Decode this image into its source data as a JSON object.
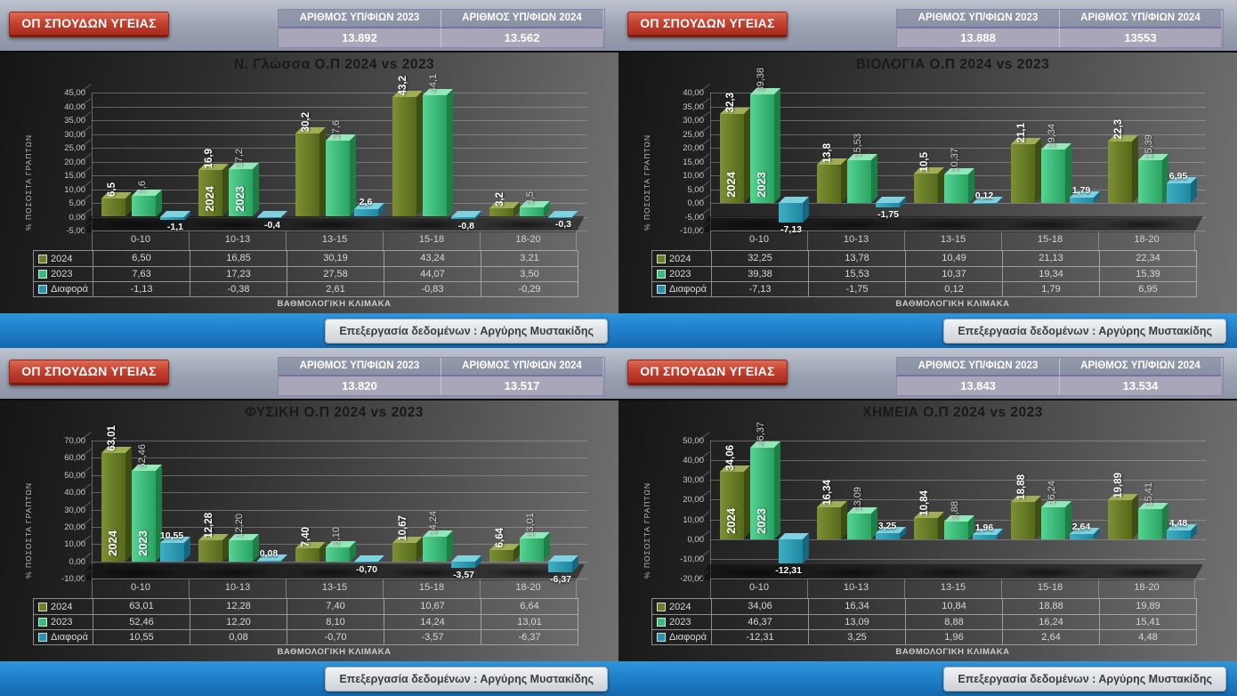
{
  "shared": {
    "badge_label": "ΟΠ ΣΠΟΥΔΩΝ ΥΓΕΙΑΣ",
    "candidates_header_2023": "ΑΡΙΘΜΟΣ ΥΠ/ΦΙΩΝ 2023",
    "candidates_header_2024": "ΑΡΙΘΜΟΣ ΥΠ/ΦΙΩΝ 2024",
    "y_axis_label": "% ΠΟΣΟΣΤΑ ΓΡΑΠΤΩΝ",
    "x_axis_label": "ΒΑΘΜΟΛΟΓΙΚΗ ΚΛΙΜΑΚΑ",
    "footer_credit": "Επεξεργασία δεδομένων : Αργύρης Μυστακίδης",
    "categories": [
      "0-10",
      "10-13",
      "13-15",
      "15-18",
      "18-20"
    ],
    "legend": [
      "2024",
      "2023",
      "Διαφορά"
    ],
    "colors": {
      "bar_2024": "#6c8026",
      "bar_2023": "#35bd79",
      "bar_diff": "#2a93ab",
      "badge_red": "#c44232",
      "footer_blue": "#1e7dc7",
      "header_gray": "#9aa2b2"
    }
  },
  "chart_data": [
    {
      "type": "bar",
      "title": "Ν. Γλώσσα Ο.Π 2024 vs 2023",
      "xlabel": "ΒΑΘΜΟΛΟΓΙΚΗ ΚΛΙΜΑΚΑ",
      "ylabel": "% ΠΟΣΟΣΤΑ ΓΡΑΠΤΩΝ",
      "candidates": {
        "2023": "13.892",
        "2024": "13.562"
      },
      "categories": [
        "0-10",
        "10-13",
        "13-15",
        "15-18",
        "18-20"
      ],
      "series": [
        {
          "name": "2024",
          "values": [
            6.5,
            16.85,
            30.19,
            43.24,
            3.21
          ]
        },
        {
          "name": "2023",
          "values": [
            7.63,
            17.23,
            27.58,
            44.07,
            3.5
          ]
        },
        {
          "name": "Διαφορά",
          "values": [
            -1.13,
            -0.38,
            2.61,
            -0.83,
            -0.29
          ]
        }
      ],
      "ylim": [
        -5,
        45
      ],
      "ytick_step": 5,
      "yticks": [
        "45,00",
        "40,00",
        "35,00",
        "30,00",
        "25,00",
        "20,00",
        "15,00",
        "10,00",
        "5,00",
        "0,00",
        "-5,00"
      ],
      "bar_labels": {
        "y2024": [
          "6,5",
          "16,9",
          "30,2",
          "43,2",
          "3,2"
        ],
        "y2023": [
          "7,6",
          "17,2",
          "27,6",
          "44,1",
          "3,5"
        ],
        "diff": [
          "-1,1",
          "-0,4",
          "2,6",
          "-0,8",
          "-0,3"
        ]
      },
      "table": {
        "y2024": [
          "6,50",
          "16,85",
          "30,19",
          "43,24",
          "3,21"
        ],
        "y2023": [
          "7,63",
          "17,23",
          "27,58",
          "44,07",
          "3,50"
        ],
        "diff": [
          "-1,13",
          "-0,38",
          "2,61",
          "-0,83",
          "-0,29"
        ]
      },
      "year_label_group": 1
    },
    {
      "type": "bar",
      "title": "ΒΙΟΛΟΓΙΑ Ο.Π 2024 vs 2023",
      "xlabel": "ΒΑΘΜΟΛΟΓΙΚΗ ΚΛΙΜΑΚΑ",
      "ylabel": "% ΠΟΣΟΣΤΑ ΓΡΑΠΤΩΝ",
      "candidates": {
        "2023": "13.888",
        "2024": "13553"
      },
      "categories": [
        "0-10",
        "10-13",
        "13-15",
        "15-18",
        "18-20"
      ],
      "series": [
        {
          "name": "2024",
          "values": [
            32.25,
            13.78,
            10.49,
            21.13,
            22.34
          ]
        },
        {
          "name": "2023",
          "values": [
            39.38,
            15.53,
            10.37,
            19.34,
            15.39
          ]
        },
        {
          "name": "Διαφορά",
          "values": [
            -7.13,
            -1.75,
            0.12,
            1.79,
            6.95
          ]
        }
      ],
      "ylim": [
        -10,
        40
      ],
      "ytick_step": 5,
      "yticks": [
        "40,00",
        "35,00",
        "30,00",
        "25,00",
        "20,00",
        "15,00",
        "10,00",
        "5,00",
        "0,00",
        "-5,00",
        "-10,00"
      ],
      "bar_labels": {
        "y2024": [
          "32,3",
          "13,8",
          "10,5",
          "21,1",
          "22,3"
        ],
        "y2023": [
          "39,38",
          "15,53",
          "10,37",
          "19,34",
          "15,39"
        ],
        "diff": [
          "-7,13",
          "-1,75",
          "0,12",
          "1,79",
          "6,95"
        ]
      },
      "table": {
        "y2024": [
          "32,25",
          "13,78",
          "10,49",
          "21,13",
          "22,34"
        ],
        "y2023": [
          "39,38",
          "15,53",
          "10,37",
          "19,34",
          "15,39"
        ],
        "diff": [
          "-7,13",
          "-1,75",
          "0,12",
          "1,79",
          "6,95"
        ]
      },
      "year_label_group": 0
    },
    {
      "type": "bar",
      "title": "ΦΥΣΙΚΗ Ο.Π 2024 vs 2023",
      "xlabel": "ΒΑΘΜΟΛΟΓΙΚΗ ΚΛΙΜΑΚΑ",
      "ylabel": "% ΠΟΣΟΣΤΑ ΓΡΑΠΤΩΝ",
      "candidates": {
        "2023": "13.820",
        "2024": "13.517"
      },
      "categories": [
        "0-10",
        "10-13",
        "13-15",
        "15-18",
        "18-20"
      ],
      "series": [
        {
          "name": "2024",
          "values": [
            63.01,
            12.28,
            7.4,
            10.67,
            6.64
          ]
        },
        {
          "name": "2023",
          "values": [
            52.46,
            12.2,
            8.1,
            14.24,
            13.01
          ]
        },
        {
          "name": "Διαφορά",
          "values": [
            10.55,
            0.08,
            -0.7,
            -3.57,
            -6.37
          ]
        }
      ],
      "ylim": [
        -10,
        70
      ],
      "ytick_step": 10,
      "yticks": [
        "70,00",
        "60,00",
        "50,00",
        "40,00",
        "30,00",
        "20,00",
        "10,00",
        "0,00",
        "-10,00"
      ],
      "bar_labels": {
        "y2024": [
          "63,01",
          "12,28",
          "7,40",
          "10,67",
          "6,64"
        ],
        "y2023": [
          "52,46",
          "12,20",
          "8,10",
          "14,24",
          "13,01"
        ],
        "diff": [
          "10,55",
          "0,08",
          "-0,70",
          "-3,57",
          "-6,37"
        ]
      },
      "table": {
        "y2024": [
          "63,01",
          "12,28",
          "7,40",
          "10,67",
          "6,64"
        ],
        "y2023": [
          "52,46",
          "12,20",
          "8,10",
          "14,24",
          "13,01"
        ],
        "diff": [
          "10,55",
          "0,08",
          "-0,70",
          "-3,57",
          "-6,37"
        ]
      },
      "year_label_group": 0
    },
    {
      "type": "bar",
      "title": "ΧΗΜΕΙΑ Ο.Π 2024 vs 2023",
      "xlabel": "ΒΑΘΜΟΛΟΓΙΚΗ ΚΛΙΜΑΚΑ",
      "ylabel": "% ΠΟΣΟΣΤΑ ΓΡΑΠΤΩΝ",
      "candidates": {
        "2023": "13.843",
        "2024": "13.534"
      },
      "categories": [
        "0-10",
        "10-13",
        "13-15",
        "15-18",
        "18-20"
      ],
      "series": [
        {
          "name": "2024",
          "values": [
            34.06,
            16.34,
            10.84,
            18.88,
            19.89
          ]
        },
        {
          "name": "2023",
          "values": [
            46.37,
            13.09,
            8.88,
            16.24,
            15.41
          ]
        },
        {
          "name": "Διαφορά",
          "values": [
            -12.31,
            3.25,
            1.96,
            2.64,
            4.48
          ]
        }
      ],
      "ylim": [
        -20,
        50
      ],
      "ytick_step": 10,
      "yticks": [
        "50,00",
        "40,00",
        "30,00",
        "20,00",
        "10,00",
        "0,00",
        "-10,00",
        "-20,00"
      ],
      "bar_labels": {
        "y2024": [
          "34,06",
          "16,34",
          "10,84",
          "18,88",
          "19,89"
        ],
        "y2023": [
          "46,37",
          "13,09",
          "8,88",
          "16,24",
          "15,41"
        ],
        "diff": [
          "-12,31",
          "3,25",
          "1,96",
          "2,64",
          "4,48"
        ]
      },
      "table": {
        "y2024": [
          "34,06",
          "16,34",
          "10,84",
          "18,88",
          "19,89"
        ],
        "y2023": [
          "46,37",
          "13,09",
          "8,88",
          "16,24",
          "15,41"
        ],
        "diff": [
          "-12,31",
          "3,25",
          "1,96",
          "2,64",
          "4,48"
        ]
      },
      "year_label_group": 0
    }
  ]
}
